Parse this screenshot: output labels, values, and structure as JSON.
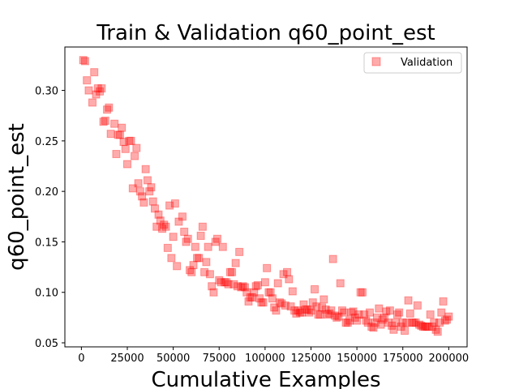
{
  "chart_data": {
    "type": "scatter",
    "title": "Train & Validation q60_point_est",
    "xlabel": "Cumulative Examples",
    "ylabel": "q60_point_est",
    "xlim": [
      -9000,
      210000
    ],
    "ylim": [
      0.046,
      0.343
    ],
    "xticks": [
      0,
      25000,
      50000,
      75000,
      100000,
      125000,
      150000,
      175000,
      200000
    ],
    "xtick_labels": [
      "0",
      "25000",
      "50000",
      "75000",
      "100000",
      "125000",
      "150000",
      "175000",
      "200000"
    ],
    "yticks": [
      0.05,
      0.1,
      0.15,
      0.2,
      0.25,
      0.3
    ],
    "ytick_labels": [
      "0.05",
      "0.10",
      "0.15",
      "0.20",
      "0.25",
      "0.30"
    ],
    "grid": false,
    "legend": {
      "position": "top-right",
      "entries": [
        "Validation"
      ]
    },
    "series": [
      {
        "name": "Validation",
        "color": "#ff0000",
        "alpha": 0.33,
        "marker": "square",
        "points": [
          [
            1000,
            0.33
          ],
          [
            2000,
            0.329
          ],
          [
            3000,
            0.31
          ],
          [
            4000,
            0.3
          ],
          [
            6000,
            0.288
          ],
          [
            7000,
            0.318
          ],
          [
            8000,
            0.296
          ],
          [
            9000,
            0.302
          ],
          [
            10000,
            0.299
          ],
          [
            11000,
            0.302
          ],
          [
            12000,
            0.269
          ],
          [
            13000,
            0.27
          ],
          [
            14000,
            0.281
          ],
          [
            15000,
            0.283
          ],
          [
            16000,
            0.257
          ],
          [
            18000,
            0.267
          ],
          [
            19000,
            0.237
          ],
          [
            20000,
            0.256
          ],
          [
            21000,
            0.256
          ],
          [
            22000,
            0.263
          ],
          [
            23000,
            0.249
          ],
          [
            24000,
            0.242
          ],
          [
            25000,
            0.227
          ],
          [
            26000,
            0.25
          ],
          [
            27000,
            0.25
          ],
          [
            28000,
            0.203
          ],
          [
            29000,
            0.235
          ],
          [
            30000,
            0.243
          ],
          [
            31000,
            0.208
          ],
          [
            32000,
            0.2
          ],
          [
            33000,
            0.195
          ],
          [
            34000,
            0.189
          ],
          [
            35000,
            0.222
          ],
          [
            36000,
            0.211
          ],
          [
            37000,
            0.2
          ],
          [
            38000,
            0.204
          ],
          [
            39000,
            0.19
          ],
          [
            40000,
            0.183
          ],
          [
            41000,
            0.165
          ],
          [
            42000,
            0.177
          ],
          [
            43000,
            0.171
          ],
          [
            44000,
            0.163
          ],
          [
            45000,
            0.167
          ],
          [
            46000,
            0.165
          ],
          [
            47000,
            0.144
          ],
          [
            48000,
            0.186
          ],
          [
            49000,
            0.134
          ],
          [
            50000,
            0.155
          ],
          [
            51000,
            0.188
          ],
          [
            52000,
            0.126
          ],
          [
            53000,
            0.17
          ],
          [
            55000,
            0.175
          ],
          [
            56000,
            0.16
          ],
          [
            57000,
            0.15
          ],
          [
            58000,
            0.153
          ],
          [
            59000,
            0.122
          ],
          [
            60000,
            0.12
          ],
          [
            61000,
            0.127
          ],
          [
            62000,
            0.145
          ],
          [
            63000,
            0.134
          ],
          [
            64000,
            0.134
          ],
          [
            65000,
            0.156
          ],
          [
            66000,
            0.165
          ],
          [
            67000,
            0.12
          ],
          [
            68000,
            0.13
          ],
          [
            69000,
            0.145
          ],
          [
            70000,
            0.118
          ],
          [
            71000,
            0.106
          ],
          [
            72000,
            0.1
          ],
          [
            73000,
            0.15
          ],
          [
            74000,
            0.153
          ],
          [
            75000,
            0.112
          ],
          [
            76000,
            0.11
          ],
          [
            77000,
            0.145
          ],
          [
            78000,
            0.11
          ],
          [
            79000,
            0.11
          ],
          [
            80000,
            0.108
          ],
          [
            81000,
            0.12
          ],
          [
            82000,
            0.12
          ],
          [
            83000,
            0.108
          ],
          [
            84000,
            0.129
          ],
          [
            85000,
            0.106
          ],
          [
            86000,
            0.14
          ],
          [
            87000,
            0.105
          ],
          [
            88000,
            0.106
          ],
          [
            89000,
            0.105
          ],
          [
            90000,
            0.1
          ],
          [
            91000,
            0.091
          ],
          [
            92000,
            0.095
          ],
          [
            93000,
            0.095
          ],
          [
            94000,
            0.1
          ],
          [
            95000,
            0.106
          ],
          [
            96000,
            0.107
          ],
          [
            97000,
            0.094
          ],
          [
            98000,
            0.09
          ],
          [
            99000,
            0.09
          ],
          [
            100000,
            0.11
          ],
          [
            101000,
            0.124
          ],
          [
            102000,
            0.1
          ],
          [
            103000,
            0.1
          ],
          [
            104000,
            0.094
          ],
          [
            105000,
            0.085
          ],
          [
            106000,
            0.082
          ],
          [
            107000,
            0.109
          ],
          [
            108000,
            0.09
          ],
          [
            109000,
            0.089
          ],
          [
            110000,
            0.118
          ],
          [
            111000,
            0.087
          ],
          [
            112000,
            0.12
          ],
          [
            113000,
            0.113
          ],
          [
            114000,
            0.086
          ],
          [
            115000,
            0.101
          ],
          [
            116000,
            0.082
          ],
          [
            117000,
            0.079
          ],
          [
            118000,
            0.082
          ],
          [
            119000,
            0.08
          ],
          [
            120000,
            0.08
          ],
          [
            121000,
            0.088
          ],
          [
            122000,
            0.083
          ],
          [
            123000,
            0.083
          ],
          [
            124000,
            0.08
          ],
          [
            125000,
            0.082
          ],
          [
            126000,
            0.09
          ],
          [
            127000,
            0.103
          ],
          [
            128000,
            0.086
          ],
          [
            129000,
            0.078
          ],
          [
            130000,
            0.078
          ],
          [
            131000,
            0.085
          ],
          [
            132000,
            0.093
          ],
          [
            133000,
            0.083
          ],
          [
            134000,
            0.078
          ],
          [
            135000,
            0.079
          ],
          [
            136000,
            0.082
          ],
          [
            137000,
            0.133
          ],
          [
            138000,
            0.077
          ],
          [
            139000,
            0.075
          ],
          [
            140000,
            0.076
          ],
          [
            141000,
            0.109
          ],
          [
            142000,
            0.082
          ],
          [
            143000,
            0.08
          ],
          [
            144000,
            0.07
          ],
          [
            145000,
            0.07
          ],
          [
            146000,
            0.072
          ],
          [
            147000,
            0.08
          ],
          [
            148000,
            0.081
          ],
          [
            149000,
            0.075
          ],
          [
            150000,
            0.072
          ],
          [
            151000,
            0.078
          ],
          [
            152000,
            0.1
          ],
          [
            153000,
            0.1
          ],
          [
            154000,
            0.078
          ],
          [
            155000,
            0.072
          ],
          [
            156000,
            0.07
          ],
          [
            157000,
            0.08
          ],
          [
            158000,
            0.066
          ],
          [
            159000,
            0.065
          ],
          [
            160000,
            0.07
          ],
          [
            161000,
            0.075
          ],
          [
            162000,
            0.084
          ],
          [
            163000,
            0.068
          ],
          [
            164000,
            0.073
          ],
          [
            165000,
            0.075
          ],
          [
            166000,
            0.081
          ],
          [
            167000,
            0.07
          ],
          [
            168000,
            0.082
          ],
          [
            169000,
            0.067
          ],
          [
            170000,
            0.063
          ],
          [
            171000,
            0.07
          ],
          [
            172000,
            0.078
          ],
          [
            173000,
            0.08
          ],
          [
            174000,
            0.066
          ],
          [
            175000,
            0.07
          ],
          [
            176000,
            0.062
          ],
          [
            177000,
            0.07
          ],
          [
            178000,
            0.092
          ],
          [
            179000,
            0.079
          ],
          [
            180000,
            0.07
          ],
          [
            181000,
            0.07
          ],
          [
            182000,
            0.07
          ],
          [
            183000,
            0.087
          ],
          [
            184000,
            0.068
          ],
          [
            185000,
            0.067
          ],
          [
            186000,
            0.066
          ],
          [
            187000,
            0.066
          ],
          [
            188000,
            0.066
          ],
          [
            189000,
            0.066
          ],
          [
            190000,
            0.078
          ],
          [
            191000,
            0.066
          ],
          [
            192000,
            0.07
          ],
          [
            193000,
            0.063
          ],
          [
            194000,
            0.061
          ],
          [
            195000,
            0.07
          ],
          [
            196000,
            0.08
          ],
          [
            197000,
            0.091
          ],
          [
            198000,
            0.072
          ],
          [
            199000,
            0.073
          ],
          [
            200000,
            0.076
          ]
        ]
      }
    ]
  }
}
